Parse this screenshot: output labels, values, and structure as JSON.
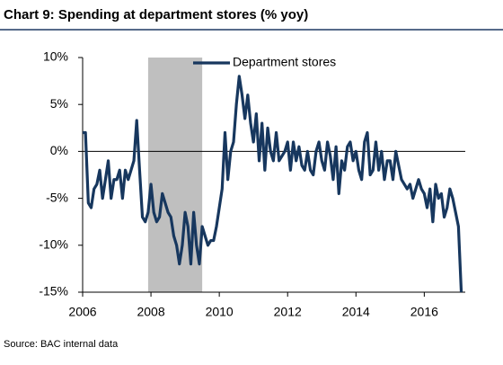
{
  "chart_data": {
    "type": "line",
    "title": "Chart 9: Spending at department stores (% yoy)",
    "source": "Source: BAC internal data",
    "x": [
      2006.0,
      2006.083,
      2006.167,
      2006.25,
      2006.333,
      2006.417,
      2006.5,
      2006.583,
      2006.667,
      2006.75,
      2006.833,
      2006.917,
      2007.0,
      2007.083,
      2007.167,
      2007.25,
      2007.333,
      2007.417,
      2007.5,
      2007.583,
      2007.667,
      2007.75,
      2007.833,
      2007.917,
      2008.0,
      2008.083,
      2008.167,
      2008.25,
      2008.333,
      2008.417,
      2008.5,
      2008.583,
      2008.667,
      2008.75,
      2008.833,
      2008.917,
      2009.0,
      2009.083,
      2009.167,
      2009.25,
      2009.333,
      2009.417,
      2009.5,
      2009.583,
      2009.667,
      2009.75,
      2009.833,
      2009.917,
      2010.0,
      2010.083,
      2010.167,
      2010.25,
      2010.333,
      2010.417,
      2010.5,
      2010.583,
      2010.667,
      2010.75,
      2010.833,
      2010.917,
      2011.0,
      2011.083,
      2011.167,
      2011.25,
      2011.333,
      2011.417,
      2011.5,
      2011.583,
      2011.667,
      2011.75,
      2011.833,
      2011.917,
      2012.0,
      2012.083,
      2012.167,
      2012.25,
      2012.333,
      2012.417,
      2012.5,
      2012.583,
      2012.667,
      2012.75,
      2012.833,
      2012.917,
      2013.0,
      2013.083,
      2013.167,
      2013.25,
      2013.333,
      2013.417,
      2013.5,
      2013.583,
      2013.667,
      2013.75,
      2013.833,
      2013.917,
      2014.0,
      2014.083,
      2014.167,
      2014.25,
      2014.333,
      2014.417,
      2014.5,
      2014.583,
      2014.667,
      2014.75,
      2014.833,
      2014.917,
      2015.0,
      2015.083,
      2015.167,
      2015.25,
      2015.333,
      2015.417,
      2015.5,
      2015.583,
      2015.667,
      2015.75,
      2015.833,
      2015.917,
      2016.0,
      2016.083,
      2016.167,
      2016.25,
      2016.333,
      2016.417,
      2016.5,
      2016.583,
      2016.667,
      2016.75,
      2016.833,
      2016.917,
      2017.0,
      2017.083
    ],
    "series": [
      {
        "name": "Department stores",
        "color": "#17375e",
        "values": [
          2,
          2,
          -5.5,
          -6,
          -4,
          -3.5,
          -2,
          -5,
          -3,
          -1,
          -5,
          -3,
          -3,
          -2,
          -5,
          -2,
          -3,
          -2,
          -1,
          3.3,
          -2,
          -7,
          -7.5,
          -6.5,
          -3.5,
          -6.5,
          -7.5,
          -7,
          -4.5,
          -5.5,
          -6.5,
          -7,
          -9,
          -10,
          -12,
          -10,
          -6.5,
          -8,
          -12,
          -6.5,
          -10,
          -12,
          -8,
          -9,
          -10,
          -9.5,
          -9.5,
          -8,
          -6,
          -4,
          2,
          -3,
          0,
          1,
          5,
          8,
          6,
          3.5,
          6,
          3,
          1,
          4,
          -1,
          3,
          -2,
          2.5,
          0,
          -1,
          2,
          -1,
          -0.5,
          0,
          1,
          -2,
          1,
          -1,
          0.5,
          -1.5,
          -2,
          0,
          -2,
          -2.5,
          0,
          1,
          -1,
          -2,
          1,
          -0.5,
          -3,
          0.5,
          -4.5,
          -1,
          -2,
          0.5,
          1,
          -1,
          0,
          -2,
          -3,
          1,
          2,
          -2.5,
          -2,
          1,
          -2,
          0,
          -3,
          -1,
          -1,
          -3,
          0,
          -1.5,
          -3,
          -3.5,
          -4,
          -3.5,
          -5,
          -4,
          -3,
          -4,
          -4.5,
          -6,
          -4,
          -7.5,
          -3.5,
          -5,
          -4.5,
          -7,
          -6,
          -4,
          -5,
          -6.5,
          -8,
          -15
        ]
      }
    ],
    "shaded_ranges": [
      [
        2007.917,
        2009.5
      ]
    ],
    "shade_color": "#bfbfbf",
    "xlim": [
      2006,
      2017.2
    ],
    "xticks": [
      2006,
      2008,
      2010,
      2012,
      2014,
      2016
    ],
    "ylim": [
      -15,
      10
    ],
    "yticks": [
      {
        "value": 10,
        "label": "10%"
      },
      {
        "value": 5,
        "label": "5%"
      },
      {
        "value": 0,
        "label": "0%"
      },
      {
        "value": -5,
        "label": "-5%"
      },
      {
        "value": -10,
        "label": "-10%"
      },
      {
        "value": -15,
        "label": "-15%"
      }
    ],
    "legend": "top"
  }
}
